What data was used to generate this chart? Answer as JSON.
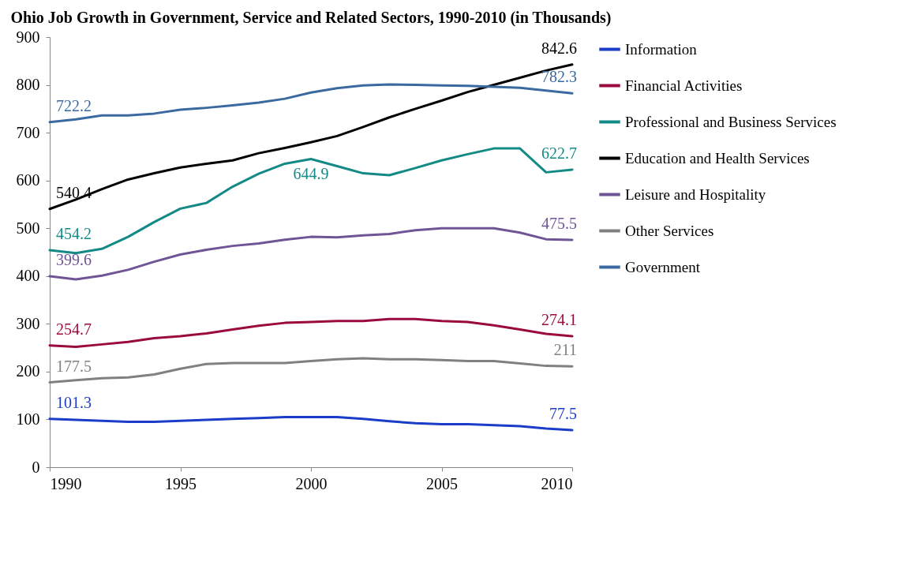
{
  "chart_data": {
    "type": "line",
    "title": "Ohio Job Growth in Government, Service and Related Sectors, 1990-2010 (in Thousands)",
    "x": [
      1990,
      1991,
      1992,
      1993,
      1994,
      1995,
      1996,
      1997,
      1998,
      1999,
      2000,
      2001,
      2002,
      2003,
      2004,
      2005,
      2006,
      2007,
      2008,
      2009,
      2010
    ],
    "xlim": [
      1990,
      2010
    ],
    "xticks": [
      1990,
      1995,
      2000,
      2005,
      2010
    ],
    "ylim": [
      0,
      900
    ],
    "yticks": [
      0,
      100,
      200,
      300,
      400,
      500,
      600,
      700,
      800,
      900
    ],
    "grid": false,
    "legend": "right",
    "line_style": "solid",
    "marker": "none",
    "series": [
      {
        "name": "Information",
        "color": "#1a3cc8",
        "values": [
          101.3,
          99,
          97,
          95,
          95,
          97,
          99,
          101,
          103,
          105,
          105,
          105,
          101,
          96,
          92,
          90,
          90,
          88,
          86,
          81,
          77.5
        ],
        "value_labels": [
          "101.3",
          null,
          null,
          null,
          null,
          null,
          null,
          null,
          null,
          null,
          null,
          null,
          null,
          null,
          null,
          null,
          null,
          null,
          null,
          null,
          "77.5"
        ]
      },
      {
        "name": "Financial Activities",
        "color": "#9b0a3f",
        "values": [
          254.7,
          252,
          257,
          262,
          270,
          274,
          280,
          288,
          296,
          302,
          304,
          306,
          306,
          310,
          310,
          306,
          304,
          297,
          288,
          279,
          274.1
        ],
        "value_labels": [
          "254.7",
          null,
          null,
          null,
          null,
          null,
          null,
          null,
          null,
          null,
          null,
          null,
          null,
          null,
          null,
          null,
          null,
          null,
          null,
          null,
          "274.1"
        ]
      },
      {
        "name": "Professional and Business Services",
        "color": "#138a85",
        "values": [
          454.2,
          448,
          457,
          482,
          513,
          541,
          553,
          587,
          614,
          635,
          644.9,
          630,
          615,
          611,
          626,
          642,
          655,
          667,
          667,
          617,
          622.7
        ],
        "value_labels": [
          "454.2",
          null,
          null,
          null,
          null,
          null,
          null,
          null,
          null,
          null,
          "644.9",
          null,
          null,
          null,
          null,
          null,
          null,
          null,
          null,
          null,
          "622.7"
        ]
      },
      {
        "name": "Education and Health Services",
        "color": "#000000",
        "values": [
          540.4,
          560,
          582,
          602,
          615,
          627,
          635,
          642,
          657,
          668,
          680,
          693,
          712,
          732,
          750,
          767,
          785,
          800,
          815,
          830,
          842.6
        ],
        "value_labels": [
          "540.4",
          null,
          null,
          null,
          null,
          null,
          null,
          null,
          null,
          null,
          null,
          null,
          null,
          null,
          null,
          null,
          null,
          null,
          null,
          null,
          "842.6"
        ]
      },
      {
        "name": "Leisure and Hospitality",
        "color": "#6f5496",
        "values": [
          399.6,
          393,
          401,
          413,
          430,
          445,
          455,
          463,
          468,
          476,
          482,
          481,
          485,
          488,
          496,
          500,
          500,
          500,
          491,
          477,
          475.5
        ],
        "value_labels": [
          "399.6",
          null,
          null,
          null,
          null,
          null,
          null,
          null,
          null,
          null,
          null,
          null,
          null,
          null,
          null,
          null,
          null,
          null,
          null,
          null,
          "475.5"
        ]
      },
      {
        "name": "Other Services",
        "color": "#808080",
        "values": [
          177.5,
          182,
          186,
          188,
          194,
          206,
          216,
          218,
          218,
          218,
          222,
          226,
          228,
          226,
          226,
          224,
          222,
          222,
          217,
          212,
          211
        ],
        "value_labels": [
          "177.5",
          null,
          null,
          null,
          null,
          null,
          null,
          null,
          null,
          null,
          null,
          null,
          null,
          null,
          null,
          null,
          null,
          null,
          null,
          null,
          "211"
        ]
      },
      {
        "name": "Government",
        "color": "#3a6aa0",
        "values": [
          722.2,
          728,
          736,
          736,
          740,
          748,
          752,
          757,
          763,
          771,
          784,
          793,
          799,
          801,
          800,
          799,
          798,
          796,
          794,
          788,
          782.3
        ],
        "value_labels": [
          "722.2",
          null,
          null,
          null,
          null,
          null,
          null,
          null,
          null,
          null,
          null,
          null,
          null,
          null,
          null,
          null,
          null,
          null,
          null,
          null,
          "782.3"
        ]
      }
    ]
  }
}
